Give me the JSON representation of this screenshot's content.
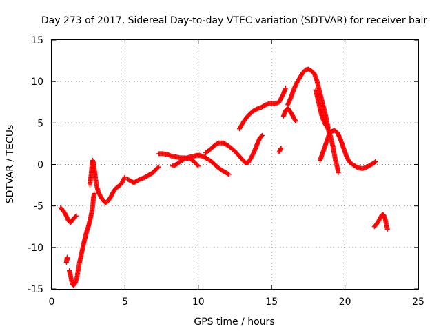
{
  "chart_data": {
    "type": "scatter",
    "title": "Day 273 of 2017, Sidereal Day-to-day VTEC variation (SDTVAR) for receiver bair",
    "xlabel": "GPS time / hours",
    "ylabel": "SDTVAR / TECUs",
    "xlim": [
      0,
      25
    ],
    "ylim": [
      -15,
      15
    ],
    "xticks": [
      "0",
      "5",
      "10",
      "15",
      "20",
      "25"
    ],
    "yticks": [
      "-15",
      "-10",
      "-5",
      "0",
      "5",
      "10",
      "15"
    ],
    "grid": true,
    "marker": "plus",
    "color": "#ff0000",
    "series": [
      {
        "points": [
          [
            0.6,
            -5.2
          ],
          [
            0.8,
            -5.6
          ],
          [
            1.0,
            -6.2
          ],
          [
            1.15,
            -6.8
          ],
          [
            1.3,
            -7.0
          ],
          [
            1.45,
            -6.6
          ],
          [
            1.6,
            -6.3
          ],
          [
            1.7,
            -6.2
          ]
        ]
      },
      {
        "points": [
          [
            1.0,
            -11.8
          ],
          [
            1.05,
            -11.2
          ],
          [
            1.1,
            -11.5
          ]
        ]
      },
      {
        "points": [
          [
            1.2,
            -12.8
          ],
          [
            1.3,
            -13.5
          ],
          [
            1.4,
            -14.4
          ],
          [
            1.5,
            -14.6
          ],
          [
            1.6,
            -14.3
          ],
          [
            1.7,
            -13.8
          ],
          [
            1.8,
            -12.8
          ],
          [
            1.9,
            -11.8
          ],
          [
            2.0,
            -11.0
          ],
          [
            2.1,
            -10.2
          ],
          [
            2.2,
            -9.4
          ],
          [
            2.3,
            -8.7
          ],
          [
            2.4,
            -8.0
          ],
          [
            2.5,
            -7.5
          ],
          [
            2.6,
            -6.8
          ],
          [
            2.7,
            -6.0
          ],
          [
            2.8,
            -5.0
          ],
          [
            2.85,
            -4.0
          ],
          [
            2.9,
            -3.5
          ]
        ]
      },
      {
        "points": [
          [
            2.6,
            -2.5
          ],
          [
            2.7,
            -1.0
          ],
          [
            2.75,
            0.0
          ],
          [
            2.8,
            0.5
          ],
          [
            2.85,
            0.2
          ],
          [
            2.9,
            -0.5
          ],
          [
            3.0,
            -1.8
          ],
          [
            3.1,
            -2.8
          ],
          [
            3.2,
            -3.4
          ],
          [
            3.35,
            -3.9
          ],
          [
            3.5,
            -4.3
          ],
          [
            3.65,
            -4.6
          ],
          [
            3.8,
            -4.5
          ],
          [
            4.0,
            -4.0
          ],
          [
            4.2,
            -3.3
          ],
          [
            4.4,
            -2.8
          ],
          [
            4.6,
            -2.6
          ],
          [
            4.8,
            -2.2
          ],
          [
            4.9,
            -1.8
          ],
          [
            5.0,
            -1.5
          ]
        ]
      },
      {
        "points": [
          [
            5.2,
            -1.8
          ],
          [
            5.4,
            -2.0
          ],
          [
            5.6,
            -2.2
          ],
          [
            5.8,
            -2.0
          ],
          [
            6.0,
            -1.8
          ],
          [
            6.3,
            -1.6
          ],
          [
            6.6,
            -1.3
          ],
          [
            6.9,
            -1.0
          ],
          [
            7.1,
            -0.6
          ],
          [
            7.3,
            -0.3
          ]
        ]
      },
      {
        "points": [
          [
            7.3,
            1.3
          ],
          [
            7.6,
            1.3
          ],
          [
            7.9,
            1.2
          ],
          [
            8.2,
            1.0
          ],
          [
            8.5,
            0.9
          ],
          [
            8.8,
            0.8
          ],
          [
            9.1,
            0.8
          ],
          [
            9.4,
            0.7
          ],
          [
            9.6,
            0.5
          ],
          [
            9.8,
            0.2
          ],
          [
            10.0,
            -0.2
          ]
        ]
      },
      {
        "points": [
          [
            8.2,
            -0.2
          ],
          [
            8.5,
            0.0
          ],
          [
            8.8,
            0.4
          ],
          [
            9.1,
            0.7
          ],
          [
            9.4,
            0.9
          ],
          [
            9.7,
            1.0
          ],
          [
            9.9,
            1.1
          ],
          [
            10.1,
            1.1
          ],
          [
            10.4,
            0.9
          ],
          [
            10.7,
            0.6
          ],
          [
            11.0,
            0.2
          ],
          [
            11.3,
            -0.3
          ],
          [
            11.6,
            -0.7
          ],
          [
            11.9,
            -1.0
          ],
          [
            12.1,
            -1.2
          ]
        ]
      },
      {
        "points": [
          [
            10.5,
            1.4
          ],
          [
            10.8,
            1.8
          ],
          [
            11.1,
            2.3
          ],
          [
            11.4,
            2.6
          ],
          [
            11.7,
            2.6
          ],
          [
            12.0,
            2.3
          ],
          [
            12.3,
            1.9
          ],
          [
            12.6,
            1.4
          ],
          [
            12.9,
            0.8
          ],
          [
            13.2,
            0.2
          ],
          [
            13.4,
            0.2
          ],
          [
            13.6,
            0.8
          ],
          [
            13.8,
            1.5
          ],
          [
            14.0,
            2.4
          ],
          [
            14.2,
            3.2
          ],
          [
            14.35,
            3.5
          ]
        ]
      },
      {
        "points": [
          [
            12.8,
            4.3
          ],
          [
            13.1,
            5.2
          ],
          [
            13.4,
            5.9
          ],
          [
            13.7,
            6.4
          ],
          [
            14.0,
            6.7
          ],
          [
            14.3,
            6.9
          ],
          [
            14.6,
            7.2
          ],
          [
            14.9,
            7.4
          ],
          [
            15.2,
            7.3
          ],
          [
            15.5,
            7.5
          ],
          [
            15.8,
            8.5
          ],
          [
            15.95,
            9.2
          ]
        ]
      },
      {
        "points": [
          [
            15.5,
            1.5
          ],
          [
            15.6,
            1.8
          ],
          [
            15.65,
            2.0
          ]
        ]
      },
      {
        "points": [
          [
            15.8,
            5.8
          ],
          [
            15.95,
            6.5
          ],
          [
            16.1,
            6.8
          ],
          [
            16.25,
            6.4
          ],
          [
            16.4,
            6.0
          ],
          [
            16.55,
            5.5
          ],
          [
            16.65,
            5.2
          ]
        ]
      },
      {
        "points": [
          [
            16.1,
            7.2
          ],
          [
            16.3,
            8.0
          ],
          [
            16.5,
            9.0
          ],
          [
            16.7,
            9.8
          ],
          [
            16.9,
            10.4
          ],
          [
            17.1,
            11.0
          ],
          [
            17.3,
            11.4
          ],
          [
            17.5,
            11.5
          ],
          [
            17.7,
            11.3
          ],
          [
            17.9,
            11.0
          ],
          [
            18.1,
            10.0
          ],
          [
            18.3,
            8.6
          ],
          [
            18.5,
            7.2
          ],
          [
            18.7,
            5.8
          ],
          [
            18.85,
            4.5
          ]
        ]
      },
      {
        "points": [
          [
            18.0,
            9.0
          ],
          [
            18.2,
            7.5
          ],
          [
            18.4,
            6.0
          ],
          [
            18.6,
            5.0
          ],
          [
            18.8,
            4.5
          ],
          [
            19.0,
            3.5
          ],
          [
            19.2,
            2.0
          ],
          [
            19.35,
            0.5
          ],
          [
            19.5,
            -0.5
          ],
          [
            19.55,
            -1.0
          ]
        ]
      },
      {
        "points": [
          [
            18.3,
            0.5
          ],
          [
            18.5,
            1.5
          ],
          [
            18.7,
            2.5
          ],
          [
            18.8,
            3.0
          ],
          [
            18.95,
            3.8
          ],
          [
            19.1,
            4.0
          ],
          [
            19.3,
            4.1
          ],
          [
            19.5,
            3.8
          ],
          [
            19.7,
            3.0
          ],
          [
            19.9,
            2.0
          ],
          [
            20.1,
            1.0
          ],
          [
            20.3,
            0.3
          ],
          [
            20.6,
            -0.1
          ],
          [
            20.9,
            -0.4
          ],
          [
            21.2,
            -0.5
          ],
          [
            21.5,
            -0.3
          ],
          [
            21.8,
            0.0
          ],
          [
            22.0,
            0.2
          ],
          [
            22.1,
            0.4
          ]
        ]
      },
      {
        "points": [
          [
            22.0,
            -7.5
          ],
          [
            22.15,
            -7.2
          ],
          [
            22.3,
            -6.8
          ],
          [
            22.45,
            -6.3
          ],
          [
            22.55,
            -6.0
          ],
          [
            22.65,
            -6.1
          ],
          [
            22.75,
            -6.6
          ],
          [
            22.85,
            -7.5
          ],
          [
            22.9,
            -7.8
          ]
        ]
      }
    ]
  }
}
